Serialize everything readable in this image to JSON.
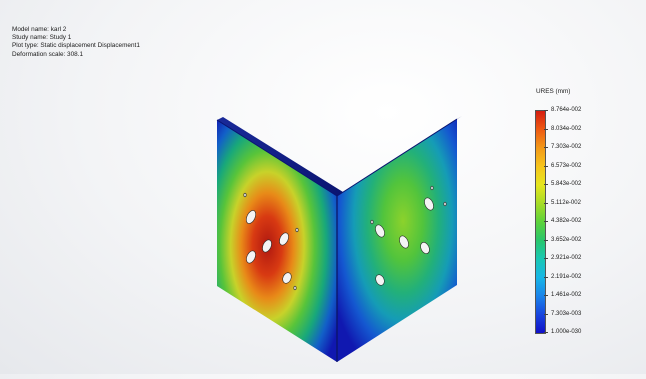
{
  "info": {
    "model_name": "Model name: karl 2",
    "study_name": "Study name: Study 1",
    "plot_type": "Plot type: Static displacement Displacement1",
    "deformation_scale": "Deformation scale: 308.1"
  },
  "legend": {
    "title": "URES (mm)",
    "labels": [
      "8.764e-002",
      "8.034e-002",
      "7.303e-002",
      "6.573e-002",
      "5.843e-002",
      "5.112e-002",
      "4.382e-002",
      "3.652e-002",
      "2.921e-002",
      "2.191e-002",
      "1.461e-002",
      "7.303e-003",
      "1.000e-030"
    ],
    "colors": [
      "#d41d10",
      "#ee5a12",
      "#f39a18",
      "#f6c51c",
      "#e6e61e",
      "#a6dc26",
      "#5cd23a",
      "#28c66c",
      "#18c7b4",
      "#17b6e6",
      "#1a84ea",
      "#1845de",
      "#1010c8"
    ]
  }
}
